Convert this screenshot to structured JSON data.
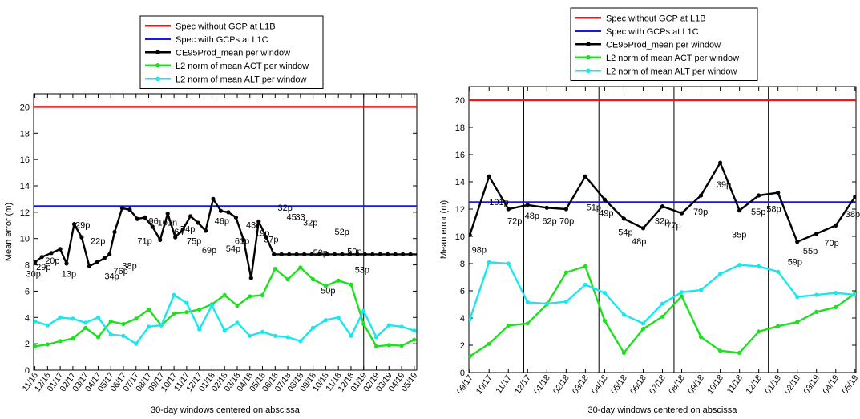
{
  "chart_data": [
    {
      "type": "line",
      "xlabel": "30-day windows centered on abscissa",
      "ylabel": "Mean error (m)",
      "ylim": [
        0,
        21
      ],
      "yticks": [
        0,
        2,
        4,
        6,
        8,
        10,
        12,
        14,
        16,
        18,
        20
      ],
      "grid": false,
      "legend_position": "top-center",
      "categories": [
        "11/16",
        "12/16",
        "01/17",
        "02/17",
        "03/17",
        "04/17",
        "05/17",
        "06/17",
        "07/17",
        "08/17",
        "09/17",
        "10/17",
        "11/17",
        "12/17",
        "01/18",
        "02/18",
        "03/18",
        "04/18",
        "05/18",
        "06/18",
        "07/18",
        "08/18",
        "09/18",
        "10/18",
        "11/18",
        "12/18",
        "01/19",
        "02/19",
        "03/19",
        "04/19",
        "05/19"
      ],
      "tick_labels": [
        "11/16",
        "12/16",
        "01/17",
        "02/17",
        "03/17",
        "04/17",
        "05/17",
        "06/17",
        "07/17",
        "08/17",
        "09/17",
        "10/17",
        "11/17",
        "12/17",
        "01/18",
        "02/18",
        "03/18",
        "04/18",
        "05/18",
        "06/18",
        "07/18",
        "08/18",
        "09/18",
        "10/18",
        "11/18",
        "12/18",
        "01/19",
        "02/19",
        "03/19",
        "04/19",
        "05/19"
      ],
      "x": [
        0,
        1,
        2,
        3,
        4,
        5,
        6,
        7,
        8,
        9,
        10,
        11,
        12,
        13,
        14,
        15,
        16,
        17,
        18,
        19,
        20,
        21,
        22,
        23,
        24,
        25,
        26,
        27,
        28,
        29,
        30
      ],
      "vlines": [
        26
      ],
      "series": [
        {
          "name": "Spec without GCP at L1B",
          "color": "#e41a1c",
          "kind": "hline",
          "value": 20
        },
        {
          "name": "Spec with GCPs at L1C",
          "color": "#1a1adc",
          "kind": "hline",
          "value": 12.45
        },
        {
          "name": "CE95Prod_mean per window",
          "color": "#000000",
          "kind": "line",
          "x": [
            0,
            0.55,
            1.3,
            2.0,
            2.5,
            3.1,
            3.7,
            4.3,
            4.9,
            5.5,
            5.9,
            6.3,
            6.9,
            7.5,
            8.1,
            8.7,
            9.3,
            9.9,
            10.5,
            11.1,
            11.7,
            12.3,
            12.9,
            13.5,
            14.1,
            14.7,
            15.3,
            15.9,
            16.5,
            17.1,
            17.7,
            18.3,
            18.9,
            19.5,
            20.1,
            20.7,
            21.3,
            21.9,
            22.5,
            23.1,
            23.7,
            24.3,
            24.9,
            25.5,
            26.1,
            26.7,
            27.3,
            27.9,
            28.5,
            29.1,
            29.7,
            30.3
          ],
          "values": [
            8.2,
            8.6,
            8.9,
            9.2,
            8.1,
            11.1,
            10.1,
            7.9,
            8.2,
            8.5,
            8.8,
            10.5,
            12.3,
            12.2,
            11.5,
            11.6,
            10.9,
            9.9,
            11.9,
            10.1,
            10.7,
            11.7,
            11.2,
            10.6,
            13.0,
            12.1,
            12.0,
            11.6,
            9.9,
            7.0,
            11.3,
            10.1,
            8.8,
            8.8,
            8.8,
            8.8,
            8.8,
            8.8,
            8.8,
            8.8,
            8.8,
            8.8,
            8.8,
            8.8,
            8.8,
            8.8,
            8.8,
            8.8,
            8.8,
            8.8,
            8.8,
            8.8
          ],
          "count_labels": [
            {
              "text": "30p",
              "x": -0.7,
              "y": 7.1
            },
            {
              "text": "29p",
              "x": 0.1,
              "y": 7.6
            },
            {
              "text": "20p",
              "x": 0.8,
              "y": 8.1
            },
            {
              "text": "13p",
              "x": 2.1,
              "y": 7.1
            },
            {
              "text": "29p",
              "x": 3.2,
              "y": 10.8
            },
            {
              "text": "22p",
              "x": 4.4,
              "y": 9.6
            },
            {
              "text": "34p",
              "x": 5.5,
              "y": 6.9
            },
            {
              "text": "76p",
              "x": 6.2,
              "y": 7.3
            },
            {
              "text": "38p",
              "x": 6.9,
              "y": 7.7
            },
            {
              "text": "71p",
              "x": 8.1,
              "y": 9.6
            },
            {
              "text": "96",
              "x": 9.0,
              "y": 11.1
            },
            {
              "text": "101n",
              "x": 9.7,
              "y": 11.0
            },
            {
              "text": "64",
              "x": 11.0,
              "y": 10.3
            },
            {
              "text": "74p",
              "x": 11.5,
              "y": 10.5
            },
            {
              "text": "75p",
              "x": 12.0,
              "y": 9.6
            },
            {
              "text": "69p",
              "x": 13.2,
              "y": 8.9
            },
            {
              "text": "46p",
              "x": 14.2,
              "y": 11.1
            },
            {
              "text": "54p",
              "x": 15.1,
              "y": 9.0
            },
            {
              "text": "61p",
              "x": 15.8,
              "y": 9.6
            },
            {
              "text": "43r",
              "x": 16.7,
              "y": 10.8
            },
            {
              "text": "19p",
              "x": 17.4,
              "y": 10.2
            },
            {
              "text": "37p",
              "x": 18.1,
              "y": 9.7
            },
            {
              "text": "32p",
              "x": 19.2,
              "y": 12.1
            },
            {
              "text": "45",
              "x": 19.9,
              "y": 11.4
            },
            {
              "text": "33",
              "x": 20.6,
              "y": 11.4
            },
            {
              "text": "32p",
              "x": 21.2,
              "y": 11.0
            },
            {
              "text": "50p",
              "x": 22.0,
              "y": 8.7
            },
            {
              "text": "50p",
              "x": 22.6,
              "y": 5.8
            },
            {
              "text": "52p",
              "x": 23.7,
              "y": 10.3
            },
            {
              "text": "50p",
              "x": 24.7,
              "y": 8.8
            },
            {
              "text": "53p",
              "x": 25.3,
              "y": 7.4
            }
          ]
        },
        {
          "name": "L2 norm of mean ACT per window",
          "color": "#1fe01f",
          "kind": "line",
          "values": [
            1.8,
            1.95,
            2.2,
            2.4,
            3.2,
            2.5,
            3.7,
            3.5,
            3.9,
            4.6,
            3.4,
            4.3,
            4.4,
            4.6,
            5.0,
            5.7,
            4.9,
            5.6,
            5.7,
            7.7,
            6.9,
            7.8,
            6.9,
            6.4,
            6.8,
            6.5,
            3.5,
            1.8,
            1.9,
            1.85,
            2.3
          ]
        },
        {
          "name": "L2 norm of mean ALT per window",
          "color": "#1ae6ee",
          "kind": "line",
          "values": [
            3.7,
            3.4,
            4.0,
            3.9,
            3.6,
            4.0,
            2.7,
            2.6,
            2.0,
            3.3,
            3.4,
            5.7,
            5.1,
            3.1,
            4.9,
            3.0,
            3.6,
            2.6,
            2.9,
            2.6,
            2.5,
            2.2,
            3.2,
            3.8,
            4.0,
            2.6,
            4.5,
            2.5,
            3.4,
            3.3,
            3.0
          ]
        }
      ]
    },
    {
      "type": "line",
      "xlabel": "30-day windows centered on abscissa",
      "ylabel": "Mean error (m)",
      "ylim": [
        0,
        21
      ],
      "yticks": [
        0,
        2,
        4,
        6,
        8,
        10,
        12,
        14,
        16,
        18,
        20
      ],
      "grid": false,
      "legend_position": "top-center",
      "tick_labels": [
        "09/17",
        "10/17",
        "11/17",
        "12/17",
        "01/18",
        "02/18",
        "03/18",
        "04/18",
        "05/18",
        "06/18",
        "07/18",
        "08/18",
        "09/18",
        "10/18",
        "11/18",
        "12/18",
        "01/19",
        "02/19",
        "03/19",
        "04/19",
        "05/19"
      ],
      "x": [
        0,
        1,
        2,
        3,
        4,
        5,
        6,
        7,
        8,
        9,
        10,
        11,
        12,
        13,
        14,
        15,
        16,
        17,
        18,
        19,
        20
      ],
      "vlines": [
        2.8,
        6.7,
        10.6,
        15.5
      ],
      "series": [
        {
          "name": "Spec without GCP at L1B",
          "color": "#e41a1c",
          "kind": "hline",
          "value": 20
        },
        {
          "name": "Spec with GCPs at L1C",
          "color": "#1a1adc",
          "kind": "hline",
          "value": 12.5
        },
        {
          "name": "CE95Prod_mean per window",
          "color": "#000000",
          "kind": "line",
          "values": [
            10.1,
            14.4,
            12.0,
            12.3,
            12.1,
            12.0,
            14.4,
            12.7,
            11.3,
            10.6,
            12.2,
            11.7,
            13.0,
            15.4,
            11.9,
            13.0,
            13.2,
            9.6,
            10.2,
            10.8,
            12.9
          ],
          "count_labels": [
            {
              "text": "98p",
              "x": 0.1,
              "y": 8.8
            },
            {
              "text": "101p",
              "x": 1.0,
              "y": 12.3
            },
            {
              "text": "72p",
              "x": 1.95,
              "y": 10.9
            },
            {
              "text": "48p",
              "x": 2.85,
              "y": 11.3
            },
            {
              "text": "62p",
              "x": 3.75,
              "y": 10.9
            },
            {
              "text": "70p",
              "x": 4.65,
              "y": 10.9
            },
            {
              "text": "51p",
              "x": 6.05,
              "y": 11.9
            },
            {
              "text": "49p",
              "x": 6.7,
              "y": 11.5
            },
            {
              "text": "54p",
              "x": 7.7,
              "y": 10.1
            },
            {
              "text": "48p",
              "x": 8.4,
              "y": 9.4
            },
            {
              "text": "32p",
              "x": 9.6,
              "y": 10.9
            },
            {
              "text": "77p",
              "x": 10.2,
              "y": 10.6
            },
            {
              "text": "79p",
              "x": 11.6,
              "y": 11.6
            },
            {
              "text": "39p",
              "x": 12.8,
              "y": 13.6
            },
            {
              "text": "35p",
              "x": 13.6,
              "y": 9.9
            },
            {
              "text": "55p",
              "x": 14.6,
              "y": 11.6
            },
            {
              "text": "58p",
              "x": 15.4,
              "y": 11.8
            },
            {
              "text": "59p",
              "x": 16.5,
              "y": 7.9
            },
            {
              "text": "55p",
              "x": 17.3,
              "y": 8.7
            },
            {
              "text": "70p",
              "x": 18.4,
              "y": 9.3
            },
            {
              "text": "38p",
              "x": 19.5,
              "y": 11.4
            }
          ]
        },
        {
          "name": "L2 norm of mean ACT per window",
          "color": "#1fe01f",
          "kind": "line",
          "values": [
            1.2,
            2.1,
            3.45,
            3.6,
            5.0,
            7.35,
            7.8,
            3.8,
            1.45,
            3.2,
            4.1,
            5.6,
            2.6,
            1.6,
            1.45,
            3.0,
            3.4,
            3.7,
            4.45,
            4.8,
            5.8
          ]
        },
        {
          "name": "L2 norm of mean ALT per window",
          "color": "#1ae6ee",
          "kind": "line",
          "values": [
            3.9,
            8.1,
            8.0,
            5.15,
            5.05,
            5.2,
            6.45,
            5.85,
            4.25,
            3.6,
            5.05,
            5.9,
            6.05,
            7.25,
            7.9,
            7.8,
            7.4,
            5.55,
            5.7,
            5.85,
            5.7
          ]
        }
      ]
    }
  ]
}
